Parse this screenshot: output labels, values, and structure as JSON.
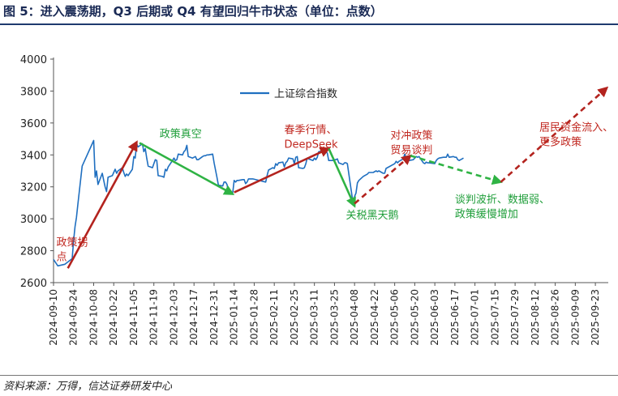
{
  "header": {
    "title": "图 5：进入震荡期，Q3 后期或 Q4 有望回归牛市状态（单位：点数）"
  },
  "footer": {
    "source": "资料来源：万得，信达证券研发中心"
  },
  "colors": {
    "series": "#1f6fc0",
    "green": "#2fb344",
    "red": "#b3231e",
    "green_text": "#1f9e3a",
    "red_text": "#c0271f",
    "title": "#1a2a55"
  },
  "chart_data": {
    "type": "line",
    "title": "",
    "xlabel": "",
    "ylabel": "",
    "ylim": [
      2600,
      4000
    ],
    "yticks": [
      2600,
      2800,
      3000,
      3200,
      3400,
      3600,
      3800,
      4000
    ],
    "xlim": [
      "2024-09-10",
      "2025-10-02"
    ],
    "xticks": [
      "2024-09-10",
      "2024-09-24",
      "2024-10-08",
      "2024-10-22",
      "2024-11-05",
      "2024-11-19",
      "2024-12-03",
      "2024-12-17",
      "2024-12-31",
      "2025-01-14",
      "2025-01-28",
      "2025-02-11",
      "2025-02-25",
      "2025-03-11",
      "2025-03-25",
      "2025-04-08",
      "2025-04-22",
      "2025-05-06",
      "2025-05-20",
      "2025-06-03",
      "2025-06-17",
      "2025-07-01",
      "2025-07-15",
      "2025-07-29",
      "2025-08-12",
      "2025-08-26",
      "2025-09-09",
      "2025-09-23"
    ],
    "grid": false,
    "legend": "top-center",
    "series": [
      {
        "name": "上证综合指数",
        "x": [
          "2024-09-10",
          "2024-09-13",
          "2024-09-18",
          "2024-09-23",
          "2024-09-24",
          "2024-09-25",
          "2024-09-26",
          "2024-09-27",
          "2024-09-30",
          "2024-10-08",
          "2024-10-09",
          "2024-10-10",
          "2024-10-11",
          "2024-10-14",
          "2024-10-15",
          "2024-10-16",
          "2024-10-17",
          "2024-10-18",
          "2024-10-21",
          "2024-10-22",
          "2024-10-23",
          "2024-10-24",
          "2024-10-25",
          "2024-10-28",
          "2024-10-29",
          "2024-10-30",
          "2024-10-31",
          "2024-11-01",
          "2024-11-04",
          "2024-11-05",
          "2024-11-06",
          "2024-11-07",
          "2024-11-08",
          "2024-11-11",
          "2024-11-12",
          "2024-11-13",
          "2024-11-14",
          "2024-11-15",
          "2024-11-18",
          "2024-11-19",
          "2024-11-20",
          "2024-11-21",
          "2024-11-22",
          "2024-11-25",
          "2024-11-26",
          "2024-11-27",
          "2024-11-28",
          "2024-11-29",
          "2024-12-02",
          "2024-12-03",
          "2024-12-04",
          "2024-12-05",
          "2024-12-06",
          "2024-12-09",
          "2024-12-10",
          "2024-12-11",
          "2024-12-12",
          "2024-12-13",
          "2024-12-16",
          "2024-12-17",
          "2024-12-18",
          "2024-12-19",
          "2024-12-20",
          "2024-12-23",
          "2024-12-24",
          "2024-12-25",
          "2024-12-26",
          "2024-12-27",
          "2024-12-30",
          "2024-12-31",
          "2025-01-02",
          "2025-01-03",
          "2025-01-06",
          "2025-01-07",
          "2025-01-08",
          "2025-01-09",
          "2025-01-10",
          "2025-01-13",
          "2025-01-14",
          "2025-01-15",
          "2025-01-16",
          "2025-01-17",
          "2025-01-20",
          "2025-01-21",
          "2025-01-22",
          "2025-01-23",
          "2025-01-24",
          "2025-01-27",
          "2025-02-05",
          "2025-02-06",
          "2025-02-07",
          "2025-02-10",
          "2025-02-11",
          "2025-02-12",
          "2025-02-13",
          "2025-02-14",
          "2025-02-17",
          "2025-02-18",
          "2025-02-19",
          "2025-02-20",
          "2025-02-21",
          "2025-02-24",
          "2025-02-25",
          "2025-02-26",
          "2025-02-27",
          "2025-02-28",
          "2025-03-03",
          "2025-03-04",
          "2025-03-05",
          "2025-03-06",
          "2025-03-07",
          "2025-03-10",
          "2025-03-11",
          "2025-03-12",
          "2025-03-13",
          "2025-03-14",
          "2025-03-17",
          "2025-03-18",
          "2025-03-19",
          "2025-03-20",
          "2025-03-21",
          "2025-03-24",
          "2025-03-25",
          "2025-03-26",
          "2025-03-27",
          "2025-03-28",
          "2025-03-31",
          "2025-04-01",
          "2025-04-02",
          "2025-04-03",
          "2025-04-07",
          "2025-04-08",
          "2025-04-09",
          "2025-04-10",
          "2025-04-11",
          "2025-04-14",
          "2025-04-15",
          "2025-04-16",
          "2025-04-17",
          "2025-04-18",
          "2025-04-21",
          "2025-04-22",
          "2025-04-23",
          "2025-04-24",
          "2025-04-25",
          "2025-04-28",
          "2025-04-29",
          "2025-04-30",
          "2025-05-06",
          "2025-05-07",
          "2025-05-08",
          "2025-05-09",
          "2025-05-12",
          "2025-05-13",
          "2025-05-14",
          "2025-05-15",
          "2025-05-16",
          "2025-05-19",
          "2025-05-20",
          "2025-05-21",
          "2025-05-22",
          "2025-05-23",
          "2025-05-26",
          "2025-05-27",
          "2025-05-28",
          "2025-05-29",
          "2025-05-30",
          "2025-06-03",
          "2025-06-04",
          "2025-06-05",
          "2025-06-06",
          "2025-06-09",
          "2025-06-10",
          "2025-06-11",
          "2025-06-12",
          "2025-06-13",
          "2025-06-16",
          "2025-06-17",
          "2025-06-18",
          "2025-06-19",
          "2025-06-20",
          "2025-06-23"
        ],
        "values": [
          2745,
          2705,
          2715,
          2750,
          2860,
          2950,
          3010,
          3090,
          3330,
          3490,
          3260,
          3300,
          3215,
          3285,
          3240,
          3200,
          3170,
          3260,
          3270,
          3290,
          3310,
          3285,
          3300,
          3320,
          3290,
          3265,
          3280,
          3270,
          3310,
          3390,
          3380,
          3470,
          3450,
          3470,
          3420,
          3440,
          3380,
          3330,
          3320,
          3345,
          3370,
          3365,
          3270,
          3265,
          3260,
          3310,
          3300,
          3325,
          3365,
          3380,
          3365,
          3370,
          3405,
          3400,
          3420,
          3430,
          3460,
          3390,
          3380,
          3385,
          3390,
          3370,
          3370,
          3390,
          3395,
          3395,
          3400,
          3400,
          3405,
          3350,
          3260,
          3210,
          3205,
          3230,
          3230,
          3215,
          3170,
          3160,
          3240,
          3230,
          3240,
          3240,
          3245,
          3245,
          3220,
          3230,
          3250,
          3250,
          3230,
          3270,
          3305,
          3320,
          3315,
          3345,
          3335,
          3350,
          3355,
          3325,
          3350,
          3360,
          3380,
          3375,
          3345,
          3385,
          3390,
          3320,
          3315,
          3320,
          3345,
          3380,
          3375,
          3365,
          3380,
          3370,
          3385,
          3420,
          3425,
          3425,
          3425,
          3410,
          3365,
          3365,
          3370,
          3370,
          3375,
          3350,
          3340,
          3350,
          3350,
          3345,
          3095,
          3140,
          3160,
          3225,
          3240,
          3265,
          3270,
          3275,
          3280,
          3290,
          3290,
          3295,
          3300,
          3295,
          3300,
          3285,
          3285,
          3315,
          3345,
          3360,
          3350,
          3360,
          3375,
          3405,
          3380,
          3370,
          3365,
          3370,
          3380,
          3390,
          3385,
          3390,
          3350,
          3345,
          3355,
          3350,
          3350,
          3345,
          3365,
          3375,
          3380,
          3385,
          3385,
          3385,
          3405,
          3385,
          3390,
          3385,
          3385,
          3370,
          3365,
          3380
        ]
      }
    ],
    "trend_segments": [
      {
        "style": "solid",
        "color": "red",
        "from": [
          "2024-09-20",
          2690
        ],
        "to": [
          "2024-11-07",
          3480
        ]
      },
      {
        "style": "solid",
        "color": "green",
        "from": [
          "2024-11-09",
          3475
        ],
        "to": [
          "2025-01-13",
          3155
        ]
      },
      {
        "style": "solid",
        "color": "red",
        "from": [
          "2025-01-14",
          3165
        ],
        "to": [
          "2025-03-21",
          3440
        ]
      },
      {
        "style": "solid",
        "color": "green",
        "from": [
          "2025-03-21",
          3440
        ],
        "to": [
          "2025-04-08",
          3080
        ]
      },
      {
        "style": "dashed",
        "color": "red",
        "from": [
          "2025-04-08",
          3095
        ],
        "to": [
          "2025-05-17",
          3395
        ]
      },
      {
        "style": "dashed",
        "color": "green",
        "from": [
          "2025-05-17",
          3395
        ],
        "to": [
          "2025-07-19",
          3230
        ]
      },
      {
        "style": "dashed",
        "color": "red",
        "from": [
          "2025-07-19",
          3230
        ],
        "to": [
          "2025-10-01",
          3820
        ]
      }
    ],
    "annotations": [
      {
        "lines": [
          "政策拐",
          "点"
        ],
        "color": "red",
        "at": [
          "2024-09-12",
          2830
        ]
      },
      {
        "lines": [
          "政策真空"
        ],
        "color": "green",
        "at": [
          "2024-11-23",
          3510
        ]
      },
      {
        "lines": [
          "春季行情、",
          "DeepSeek"
        ],
        "color": "red",
        "at": [
          "2025-02-18",
          3535
        ]
      },
      {
        "lines": [
          "关税黑天鹅"
        ],
        "color": "green",
        "at": [
          "2025-04-02",
          3000
        ]
      },
      {
        "lines": [
          "对冲政策",
          "贸易谈判"
        ],
        "color": "red",
        "at": [
          "2025-05-03",
          3500
        ]
      },
      {
        "lines": [
          "谈判波折、数据弱、",
          "政策缓慢增加"
        ],
        "color": "green",
        "at": [
          "2025-06-17",
          3100
        ]
      },
      {
        "lines": [
          "居民资金流入、",
          "更多政策"
        ],
        "color": "red",
        "at": [
          "2025-08-15",
          3550
        ]
      }
    ]
  }
}
